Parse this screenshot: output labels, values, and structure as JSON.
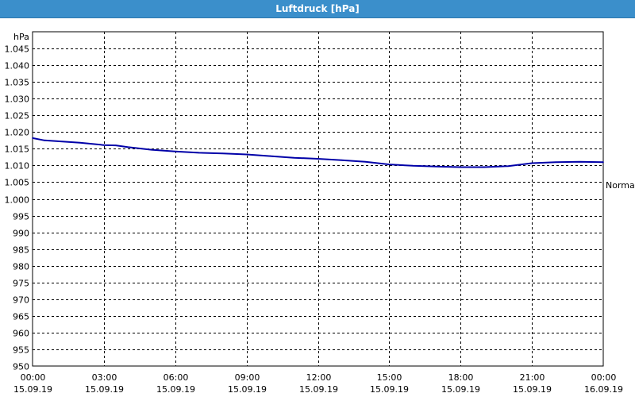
{
  "window": {
    "title": "Luftdruck [hPa]"
  },
  "colors": {
    "titlebar": "#3b8fcb",
    "title_text": "#ffffff",
    "series": "#0000a8",
    "grid": "#000000"
  },
  "chart_data": {
    "type": "line",
    "title": "Luftdruck [hPa]",
    "ylabel": "hPa",
    "xlabel": "",
    "ylim": [
      950,
      1050
    ],
    "y_ticks": [
      950,
      955,
      960,
      965,
      970,
      975,
      980,
      985,
      990,
      995,
      1000,
      1005,
      1010,
      1015,
      1020,
      1025,
      1030,
      1035,
      1040,
      1045
    ],
    "y_tick_labels": [
      "950",
      "955",
      "960",
      "965",
      "970",
      "975",
      "980",
      "985",
      "990",
      "995",
      "1.000",
      "1.005",
      "1.010",
      "1.015",
      "1.020",
      "1.025",
      "1.030",
      "1.035",
      "1.040",
      "1.045"
    ],
    "x_range_hours": [
      0,
      24
    ],
    "x_ticks": [
      {
        "hour": 0,
        "time": "00:00",
        "date": "15.09.19"
      },
      {
        "hour": 3,
        "time": "03:00",
        "date": "15.09.19"
      },
      {
        "hour": 6,
        "time": "06:00",
        "date": "15.09.19"
      },
      {
        "hour": 9,
        "time": "09:00",
        "date": "15.09.19"
      },
      {
        "hour": 12,
        "time": "12:00",
        "date": "15.09.19"
      },
      {
        "hour": 15,
        "time": "15:00",
        "date": "15.09.19"
      },
      {
        "hour": 18,
        "time": "18:00",
        "date": "15.09.19"
      },
      {
        "hour": 21,
        "time": "21:00",
        "date": "15.09.19"
      },
      {
        "hour": 24,
        "time": "00:00",
        "date": "16.09.19"
      }
    ],
    "grid": true,
    "reference_label": "Normal",
    "reference_value": 1005,
    "series": [
      {
        "x": [
          0,
          0.5,
          1,
          2,
          3,
          3.5,
          4,
          5,
          6,
          7,
          8,
          9,
          10,
          11,
          12,
          13,
          14,
          15,
          16,
          17,
          18,
          19,
          20,
          21,
          22,
          23,
          24
        ],
        "values": [
          1018.2,
          1017.5,
          1017.3,
          1016.8,
          1016.1,
          1016.0,
          1015.5,
          1014.7,
          1014.2,
          1013.8,
          1013.6,
          1013.3,
          1012.8,
          1012.3,
          1012.0,
          1011.6,
          1011.1,
          1010.3,
          1009.9,
          1009.7,
          1009.5,
          1009.5,
          1009.8,
          1010.7,
          1011.0,
          1011.1,
          1011.0
        ]
      }
    ]
  }
}
